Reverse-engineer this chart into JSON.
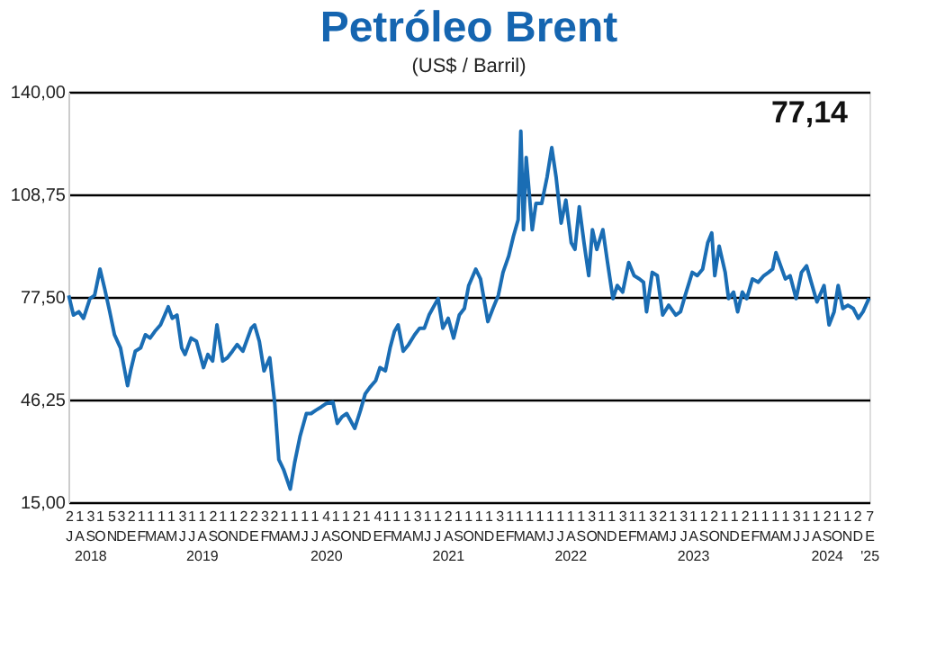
{
  "chart_data": {
    "type": "line",
    "title": "Petróleo Brent",
    "subtitle": "(US$ / Barril)",
    "annotations": [
      "77,14"
    ],
    "x": [
      "2018-07-02",
      "2018-07-16",
      "2018-08-01",
      "2018-08-15",
      "2018-09-03",
      "2018-09-17",
      "2018-10-03",
      "2018-10-17",
      "2018-11-01",
      "2018-11-15",
      "2018-12-03",
      "2018-12-24",
      "2019-01-02",
      "2019-01-16",
      "2019-02-01",
      "2019-02-15",
      "2019-03-01",
      "2019-03-15",
      "2019-04-01",
      "2019-04-24",
      "2019-05-06",
      "2019-05-20",
      "2019-06-03",
      "2019-06-13",
      "2019-07-01",
      "2019-07-17",
      "2019-08-07",
      "2019-08-20",
      "2019-09-03",
      "2019-09-16",
      "2019-10-03",
      "2019-10-17",
      "2019-11-01",
      "2019-11-15",
      "2019-12-02",
      "2019-12-27",
      "2020-01-06",
      "2020-01-20",
      "2020-02-03",
      "2020-02-20",
      "2020-03-06",
      "2020-03-18",
      "2020-04-01",
      "2020-04-21",
      "2020-05-04",
      "2020-05-20",
      "2020-06-08",
      "2020-06-22",
      "2020-07-06",
      "2020-07-22",
      "2020-08-05",
      "2020-08-26",
      "2020-09-08",
      "2020-09-22",
      "2020-10-06",
      "2020-10-30",
      "2020-11-16",
      "2020-11-30",
      "2020-12-14",
      "2020-12-31",
      "2021-01-13",
      "2021-01-29",
      "2021-02-12",
      "2021-02-25",
      "2021-03-08",
      "2021-03-23",
      "2021-04-08",
      "2021-04-26",
      "2021-05-11",
      "2021-05-25",
      "2021-06-08",
      "2021-06-24",
      "2021-07-05",
      "2021-07-19",
      "2021-08-04",
      "2021-08-20",
      "2021-09-06",
      "2021-09-21",
      "2021-10-04",
      "2021-10-25",
      "2021-11-08",
      "2021-11-30",
      "2021-12-15",
      "2021-12-31",
      "2022-01-14",
      "2022-01-31",
      "2022-02-14",
      "2022-02-28",
      "2022-03-08",
      "2022-03-16",
      "2022-03-24",
      "2022-04-11",
      "2022-04-22",
      "2022-05-09",
      "2022-05-25",
      "2022-06-08",
      "2022-06-21",
      "2022-07-06",
      "2022-07-20",
      "2022-08-05",
      "2022-08-16",
      "2022-08-29",
      "2022-09-12",
      "2022-09-26",
      "2022-10-07",
      "2022-10-20",
      "2022-11-07",
      "2022-11-21",
      "2022-12-07",
      "2022-12-20",
      "2023-01-05",
      "2023-01-23",
      "2023-02-08",
      "2023-02-24",
      "2023-03-08",
      "2023-03-17",
      "2023-04-03",
      "2023-04-18",
      "2023-05-04",
      "2023-05-22",
      "2023-06-12",
      "2023-06-26",
      "2023-07-10",
      "2023-07-31",
      "2023-08-15",
      "2023-08-31",
      "2023-09-15",
      "2023-09-27",
      "2023-10-06",
      "2023-10-19",
      "2023-11-06",
      "2023-11-16",
      "2023-12-01",
      "2023-12-13",
      "2023-12-27",
      "2024-01-09",
      "2024-01-26",
      "2024-02-12",
      "2024-02-29",
      "2024-03-14",
      "2024-03-26",
      "2024-04-05",
      "2024-04-19",
      "2024-05-03",
      "2024-05-17",
      "2024-06-04",
      "2024-06-20",
      "2024-07-05",
      "2024-07-19",
      "2024-08-05",
      "2024-08-26",
      "2024-09-10",
      "2024-09-25",
      "2024-10-07",
      "2024-10-21",
      "2024-11-05",
      "2024-11-21",
      "2024-12-06",
      "2024-12-20",
      "2025-01-07"
    ],
    "series": [
      {
        "color": "#1a6db4",
        "values": [
          78,
          72,
          73,
          71,
          77,
          78,
          86,
          80,
          73,
          66,
          62,
          50.5,
          55,
          61,
          62,
          66,
          65,
          67,
          69,
          74.5,
          71,
          72,
          62,
          60,
          65,
          64,
          56,
          60,
          58,
          69,
          58,
          59,
          61,
          63,
          61,
          68,
          69,
          64,
          55,
          59,
          45,
          28,
          25,
          19,
          27,
          35,
          42,
          42,
          43,
          44,
          45,
          45.5,
          39,
          41,
          42,
          37.5,
          43,
          48,
          50,
          52,
          56,
          55,
          62,
          67,
          69,
          61,
          63,
          66,
          68,
          68,
          72,
          75,
          77,
          68,
          71,
          65,
          72,
          74,
          81,
          86,
          83,
          70,
          74,
          78,
          85,
          90,
          96,
          101,
          128,
          98,
          120,
          98,
          106,
          106,
          114,
          123,
          114,
          100,
          107,
          94,
          92,
          105,
          94,
          84,
          98,
          92,
          98,
          88,
          77,
          81,
          79,
          88,
          84,
          83,
          82,
          73,
          85,
          84,
          72,
          75,
          72,
          73,
          78,
          85,
          84,
          86,
          94,
          97,
          84,
          93,
          85,
          77,
          79,
          73,
          79,
          77,
          83,
          82,
          84,
          85,
          86,
          91,
          87,
          83,
          84,
          77,
          85,
          87,
          82,
          76,
          81,
          69,
          73,
          81,
          74,
          75,
          74,
          71,
          73,
          77.14
        ]
      }
    ],
    "xlim": [
      "2018-07-01",
      "2025-01-08"
    ],
    "xticks": [
      {
        "value": "2018-07-02",
        "label": "2\nJ"
      },
      {
        "value": "2018-08-01",
        "label": "1\nA"
      },
      {
        "value": "2018-09-03",
        "label": "3\nS\n2018"
      },
      {
        "value": "2018-10-01",
        "label": "1\nO"
      },
      {
        "value": "2018-11-05",
        "label": "5\nN"
      },
      {
        "value": "2018-12-03",
        "label": "3\nD"
      },
      {
        "value": "2019-01-02",
        "label": "2\nE"
      },
      {
        "value": "2019-02-01",
        "label": "1\nF"
      },
      {
        "value": "2019-03-01",
        "label": "1\nM"
      },
      {
        "value": "2019-04-01",
        "label": "1\nA"
      },
      {
        "value": "2019-05-01",
        "label": "1\nM"
      },
      {
        "value": "2019-06-03",
        "label": "3\nJ"
      },
      {
        "value": "2019-07-01",
        "label": "1\nJ"
      },
      {
        "value": "2019-08-01",
        "label": "1\nA\n2019"
      },
      {
        "value": "2019-09-02",
        "label": "2\nS"
      },
      {
        "value": "2019-10-01",
        "label": "1\nO"
      },
      {
        "value": "2019-11-01",
        "label": "1\nN"
      },
      {
        "value": "2019-12-02",
        "label": "2\nD"
      },
      {
        "value": "2020-01-02",
        "label": "2\nE"
      },
      {
        "value": "2020-02-03",
        "label": "3\nF"
      },
      {
        "value": "2020-03-02",
        "label": "2\nM"
      },
      {
        "value": "2020-04-01",
        "label": "1\nA"
      },
      {
        "value": "2020-05-01",
        "label": "1\nM"
      },
      {
        "value": "2020-06-01",
        "label": "1\nJ"
      },
      {
        "value": "2020-07-01",
        "label": "1\nJ"
      },
      {
        "value": "2020-08-04",
        "label": "4\nA\n2020"
      },
      {
        "value": "2020-09-01",
        "label": "1\nS"
      },
      {
        "value": "2020-10-01",
        "label": "1\nO"
      },
      {
        "value": "2020-11-02",
        "label": "2\nN"
      },
      {
        "value": "2020-12-01",
        "label": "1\nD"
      },
      {
        "value": "2021-01-04",
        "label": "4\nE"
      },
      {
        "value": "2021-02-01",
        "label": "1\nF"
      },
      {
        "value": "2021-03-01",
        "label": "1\nM"
      },
      {
        "value": "2021-04-01",
        "label": "1\nA"
      },
      {
        "value": "2021-05-03",
        "label": "3\nM"
      },
      {
        "value": "2021-06-01",
        "label": "1\nJ"
      },
      {
        "value": "2021-07-01",
        "label": "1\nJ"
      },
      {
        "value": "2021-08-02",
        "label": "2\nA\n2021"
      },
      {
        "value": "2021-09-01",
        "label": "1\nS"
      },
      {
        "value": "2021-10-01",
        "label": "1\nO"
      },
      {
        "value": "2021-11-01",
        "label": "1\nN"
      },
      {
        "value": "2021-12-01",
        "label": "1\nD"
      },
      {
        "value": "2022-01-03",
        "label": "3\nE"
      },
      {
        "value": "2022-02-01",
        "label": "1\nF"
      },
      {
        "value": "2022-03-01",
        "label": "1\nM"
      },
      {
        "value": "2022-04-01",
        "label": "1\nA"
      },
      {
        "value": "2022-05-01",
        "label": "1\nM"
      },
      {
        "value": "2022-06-01",
        "label": "1\nJ"
      },
      {
        "value": "2022-07-01",
        "label": "1\nJ"
      },
      {
        "value": "2022-08-01",
        "label": "1\nA\n2022"
      },
      {
        "value": "2022-09-01",
        "label": "1\nS"
      },
      {
        "value": "2022-10-03",
        "label": "3\nO"
      },
      {
        "value": "2022-11-01",
        "label": "1\nN"
      },
      {
        "value": "2022-12-01",
        "label": "1\nD"
      },
      {
        "value": "2023-01-03",
        "label": "3\nE"
      },
      {
        "value": "2023-02-01",
        "label": "1\nF"
      },
      {
        "value": "2023-03-01",
        "label": "1\nM"
      },
      {
        "value": "2023-04-03",
        "label": "3\nA"
      },
      {
        "value": "2023-05-02",
        "label": "2\nM"
      },
      {
        "value": "2023-06-01",
        "label": "1\nJ"
      },
      {
        "value": "2023-07-03",
        "label": "3\nJ"
      },
      {
        "value": "2023-08-01",
        "label": "1\nA\n2023"
      },
      {
        "value": "2023-09-01",
        "label": "1\nS"
      },
      {
        "value": "2023-10-02",
        "label": "2\nO"
      },
      {
        "value": "2023-11-01",
        "label": "1\nN"
      },
      {
        "value": "2023-12-01",
        "label": "1\nD"
      },
      {
        "value": "2024-01-02",
        "label": "2\nE"
      },
      {
        "value": "2024-02-01",
        "label": "1\nF"
      },
      {
        "value": "2024-03-01",
        "label": "1\nM"
      },
      {
        "value": "2024-04-01",
        "label": "1\nA"
      },
      {
        "value": "2024-05-01",
        "label": "1\nM"
      },
      {
        "value": "2024-06-03",
        "label": "3\nJ"
      },
      {
        "value": "2024-07-01",
        "label": "1\nJ"
      },
      {
        "value": "2024-08-01",
        "label": "1\nA"
      },
      {
        "value": "2024-09-02",
        "label": "2\nS\n2024"
      },
      {
        "value": "2024-10-01",
        "label": "1\nO"
      },
      {
        "value": "2024-11-01",
        "label": "1\nN"
      },
      {
        "value": "2024-12-02",
        "label": "2\nD"
      },
      {
        "value": "2025-01-07",
        "label": "7\nE\n'25"
      }
    ],
    "ylim": [
      15,
      140
    ],
    "yticks": [
      {
        "value": 15,
        "label": "15,00"
      },
      {
        "value": 46.25,
        "label": "46,25"
      },
      {
        "value": 77.5,
        "label": "77,50"
      },
      {
        "value": 108.75,
        "label": "108,75"
      },
      {
        "value": 140,
        "label": "140,00"
      }
    ],
    "grid": "y"
  }
}
